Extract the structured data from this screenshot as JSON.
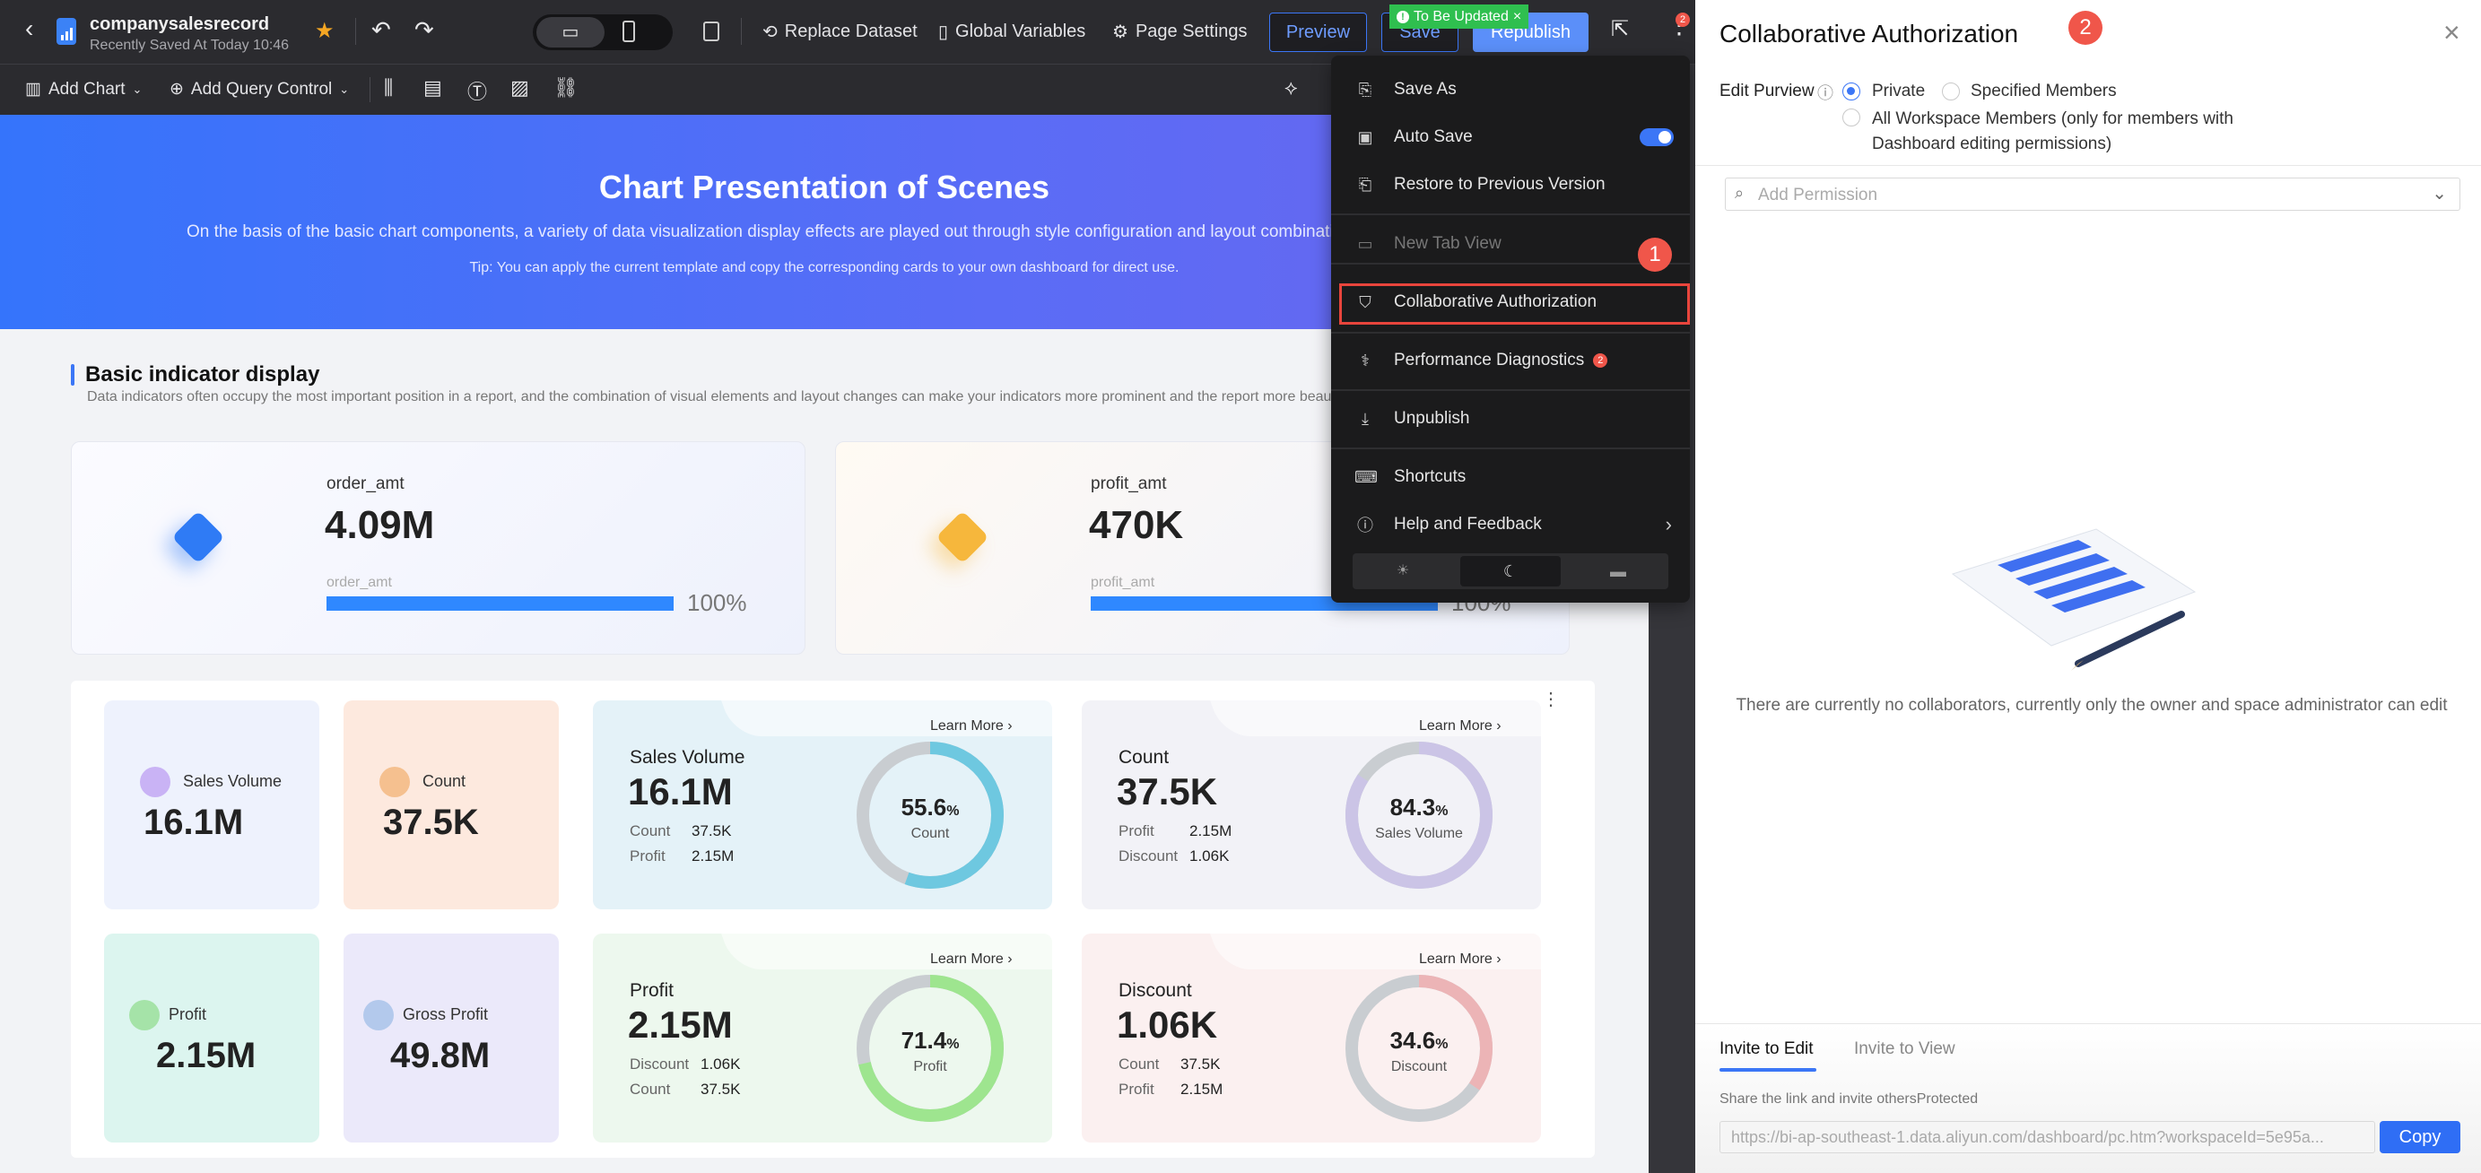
{
  "header": {
    "title": "companysalesrecord",
    "subtitle": "Recently Saved At Today 10:46",
    "replace_dataset": "Replace Dataset",
    "global_variables": "Global Variables",
    "page_settings": "Page Settings",
    "preview": "Preview",
    "save": "Save",
    "republish": "Republish",
    "to_be_updated": "To Be Updated",
    "more_badge": "2"
  },
  "toolbar": {
    "add_chart": "Add Chart",
    "add_query_control": "Add Query Control"
  },
  "banner": {
    "title": "Chart Presentation of Scenes",
    "subtitle": "On the basis of the basic chart components, a variety of data visualization display effects are played out through style configuration and layout combinations.",
    "tip": "Tip: You can apply the current template and copy the corresponding cards to your own dashboard for direct use."
  },
  "section": {
    "title": "Basic indicator display",
    "description": "Data indicators often occupy the most important position in a report, and the combination of visual elements and layout changes can make your indicators more prominent and the report more beautiful."
  },
  "kpis": [
    {
      "label": "order_amt",
      "value": "4.09M",
      "sub_label": "order_amt",
      "progress": 100,
      "progress_text": "100%",
      "color": "#2f7bf5"
    },
    {
      "label": "profit_amt",
      "value": "470K",
      "sub_label": "profit_amt",
      "progress": 100,
      "progress_text": "100%",
      "color": "#f6b73c"
    }
  ],
  "small_cards": [
    {
      "label": "Sales Volume",
      "value": "16.1M",
      "bg": "#eef2fd",
      "icon_color": "#c9b3f5"
    },
    {
      "label": "Count",
      "value": "37.5K",
      "bg": "#fde9de",
      "icon_color": "#f5c08f"
    },
    {
      "label": "Profit",
      "value": "2.15M",
      "bg": "#dcf5ef",
      "icon_color": "#a5e3a8"
    },
    {
      "label": "Gross Profit",
      "value": "49.8M",
      "bg": "#ebe9fa",
      "icon_color": "#b3c9ec"
    }
  ],
  "big_cards": [
    {
      "title": "Sales Volume",
      "value": "16.1M",
      "rows": [
        {
          "k": "Count",
          "v": "37.5K"
        },
        {
          "k": "Profit",
          "v": "2.15M"
        }
      ],
      "pct": 55.6,
      "pct_text": "55.6",
      "ring_label": "Count",
      "learn_more": "Learn More",
      "bg": "#e4f2f8",
      "ring": "#6ec8e0"
    },
    {
      "title": "Count",
      "value": "37.5K",
      "rows": [
        {
          "k": "Profit",
          "v": "2.15M"
        },
        {
          "k": "Discount",
          "v": "1.06K"
        }
      ],
      "pct": 84.3,
      "pct_text": "84.3",
      "ring_label": "Sales Volume",
      "learn_more": "Learn More",
      "bg": "#f2f2f7",
      "ring": "#cbc4e6"
    },
    {
      "title": "Profit",
      "value": "2.15M",
      "rows": [
        {
          "k": "Discount",
          "v": "1.06K"
        },
        {
          "k": "Count",
          "v": "37.5K"
        }
      ],
      "pct": 71.4,
      "pct_text": "71.4",
      "ring_label": "Profit",
      "learn_more": "Learn More",
      "bg": "#edf8ee",
      "ring": "#9ee58f"
    },
    {
      "title": "Discount",
      "value": "1.06K",
      "rows": [
        {
          "k": "Count",
          "v": "37.5K"
        },
        {
          "k": "Profit",
          "v": "2.15M"
        }
      ],
      "pct": 34.6,
      "pct_text": "34.6",
      "ring_label": "Discount",
      "learn_more": "Learn More",
      "bg": "#fbf0f0",
      "ring": "#ecb4b6"
    }
  ],
  "percent_sign": "%",
  "menu": {
    "save_as": "Save As",
    "auto_save": "Auto Save",
    "auto_save_on": true,
    "restore": "Restore to Previous Version",
    "new_tab_view": "New Tab View",
    "collab": "Collaborative Authorization",
    "perf": "Performance Diagnostics",
    "perf_badge": "2",
    "unpublish": "Unpublish",
    "shortcuts": "Shortcuts",
    "help": "Help and Feedback",
    "theme_selected": "dark",
    "step_marker": "1"
  },
  "panel": {
    "title": "Collaborative Authorization",
    "step_marker": "2",
    "edit_purview_label": "Edit Purview",
    "options": [
      "Private",
      "Specified Members",
      "All Workspace Members (only for members with Dashboard editing permissions)"
    ],
    "selected_option": "Private",
    "add_permission_placeholder": "Add Permission",
    "empty_text": "There are currently no collaborators, currently only the owner and space administrator can edit",
    "tabs": [
      "Invite to Edit",
      "Invite to View"
    ],
    "active_tab": "Invite to Edit",
    "share_text": "Share the link and invite othersProtected",
    "link": "https://bi-ap-southeast-1.data.aliyun.com/dashboard/pc.htm?workspaceId=5e95a...",
    "copy": "Copy"
  },
  "colors": {
    "accent": "#3b76f6",
    "success": "#2fbf4f",
    "danger": "#f0564a"
  }
}
